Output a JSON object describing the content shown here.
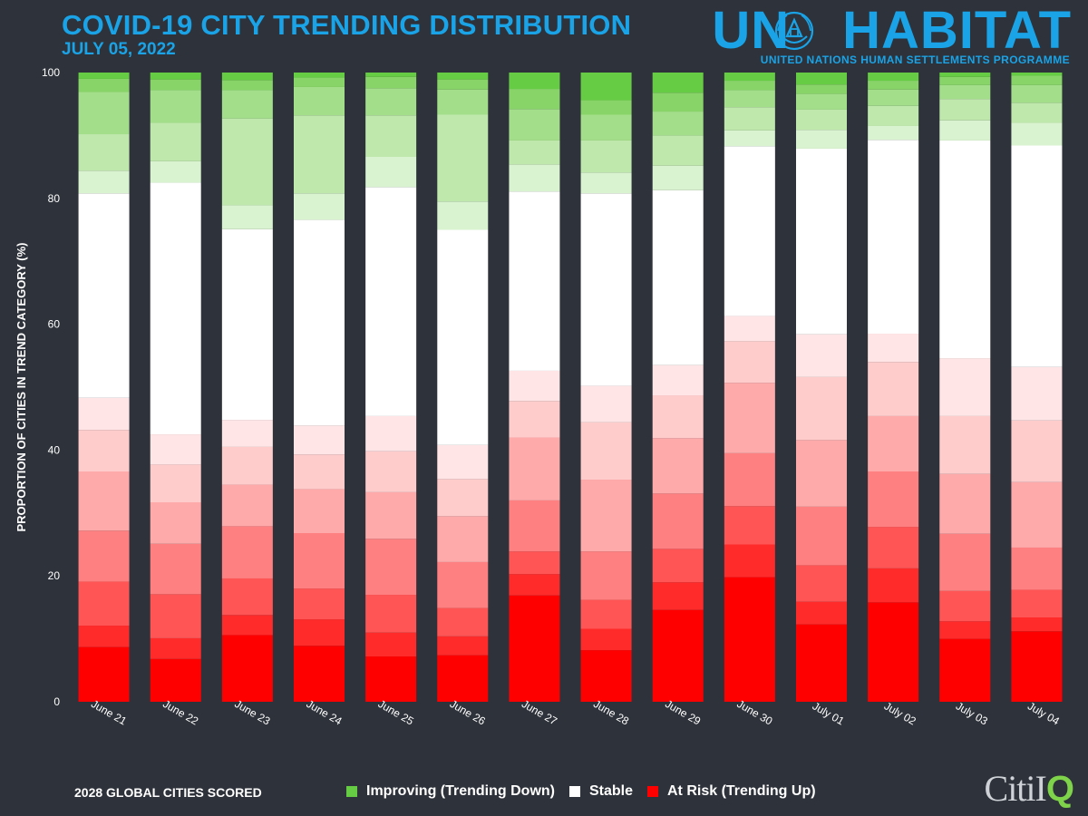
{
  "header": {
    "title": "COVID-19 CITY TRENDING DISTRIBUTION",
    "subtitle": "JULY 05, 2022"
  },
  "brand": {
    "name_left": "UN",
    "name_right": "HABITAT",
    "subtitle": "UNITED NATIONS HUMAN SETTLEMENTS PROGRAMME",
    "emblem_icon": "un-habitat-emblem-icon"
  },
  "footer": {
    "cities_scored": "2028 GLOBAL CITIES SCORED",
    "logo_text": "Citi",
    "logo_q": "Q",
    "logo_i": "I"
  },
  "colors": {
    "accent": "#1aa3e6",
    "background": "#2e323a",
    "improving": "#66cc44",
    "stable": "#ffffff",
    "at_risk": "#ff0000"
  },
  "legend": [
    {
      "label": "Improving (Trending Down)",
      "color": "#66cc44"
    },
    {
      "label": "Stable",
      "color": "#ffffff"
    },
    {
      "label": "At Risk (Trending Up)",
      "color": "#ff0000"
    }
  ],
  "chart_data": {
    "type": "bar",
    "stacked": true,
    "title": "",
    "xlabel": "",
    "ylabel": "PROPORTION OF CITIES IN TREND CATEGORY (%)",
    "ylim": [
      0,
      100
    ],
    "yticks": [
      0,
      20,
      40,
      60,
      80,
      100
    ],
    "grid": false,
    "legend_position": "bottom",
    "categories": [
      "June 21",
      "June 22",
      "June 23",
      "June 24",
      "June 25",
      "June 26",
      "June 27",
      "June 28",
      "June 29",
      "June 30",
      "July 01",
      "July 02",
      "July 03",
      "July 04"
    ],
    "series": [
      {
        "group": "At Risk (Trending Up)",
        "level": 1,
        "color": "#ff0000",
        "values": [
          8.7,
          6.8,
          10.6,
          8.9,
          7.2,
          7.4,
          16.9,
          8.2,
          14.6,
          19.8,
          12.3,
          15.8,
          10.0,
          11.2
        ]
      },
      {
        "group": "At Risk (Trending Up)",
        "level": 2,
        "color": "#ff2b2b",
        "values": [
          3.4,
          3.3,
          3.2,
          4.2,
          3.8,
          3.0,
          3.4,
          3.4,
          4.4,
          5.2,
          3.6,
          5.4,
          2.8,
          2.2
        ]
      },
      {
        "group": "At Risk (Trending Up)",
        "level": 3,
        "color": "#ff5555",
        "values": [
          7.0,
          7.0,
          5.8,
          4.9,
          6.0,
          4.5,
          3.6,
          4.6,
          5.3,
          6.1,
          5.8,
          6.6,
          4.8,
          4.4
        ]
      },
      {
        "group": "At Risk (Trending Up)",
        "level": 4,
        "color": "#ff8080",
        "values": [
          8.1,
          8.0,
          8.3,
          8.8,
          8.9,
          7.3,
          8.1,
          7.7,
          8.8,
          8.4,
          9.3,
          8.8,
          9.1,
          6.7
        ]
      },
      {
        "group": "At Risk (Trending Up)",
        "level": 5,
        "color": "#ffaaaa",
        "values": [
          9.4,
          6.6,
          6.6,
          7.0,
          7.4,
          7.3,
          10.0,
          11.4,
          8.8,
          11.2,
          10.6,
          8.8,
          9.5,
          10.4
        ]
      },
      {
        "group": "At Risk (Trending Up)",
        "level": 6,
        "color": "#ffcccc",
        "values": [
          6.6,
          6.0,
          6.0,
          5.5,
          6.5,
          5.9,
          5.8,
          9.1,
          6.8,
          6.6,
          10.0,
          8.6,
          9.2,
          9.8
        ]
      },
      {
        "group": "At Risk (Trending Up)",
        "level": 7,
        "color": "#ffe5e5",
        "values": [
          5.1,
          4.8,
          4.3,
          4.6,
          5.6,
          5.4,
          4.8,
          5.8,
          4.8,
          4.0,
          6.8,
          4.5,
          9.2,
          8.5
        ]
      },
      {
        "group": "Stable",
        "level": 0,
        "color": "#ffffff",
        "values": [
          32.5,
          40.0,
          30.3,
          32.7,
          36.4,
          34.2,
          28.5,
          30.6,
          27.8,
          27.0,
          29.5,
          30.8,
          34.6,
          35.2
        ]
      },
      {
        "group": "Improving (Trending Down)",
        "level": 7,
        "color": "#d9f2cf",
        "values": [
          3.6,
          3.4,
          3.8,
          4.2,
          4.8,
          4.5,
          4.3,
          3.3,
          3.9,
          2.5,
          3.0,
          2.2,
          3.2,
          3.6
        ]
      },
      {
        "group": "Improving (Trending Down)",
        "level": 6,
        "color": "#bfe8ad",
        "values": [
          5.8,
          6.1,
          13.8,
          12.4,
          6.6,
          13.8,
          3.8,
          5.1,
          4.8,
          3.7,
          3.2,
          3.2,
          3.4,
          3.2
        ]
      },
      {
        "group": "Improving (Trending Down)",
        "level": 5,
        "color": "#a3de8a",
        "values": [
          6.7,
          5.2,
          4.5,
          4.5,
          4.3,
          4.0,
          5.0,
          4.1,
          3.8,
          2.7,
          2.5,
          2.6,
          2.2,
          2.8
        ]
      },
      {
        "group": "Improving (Trending Down)",
        "level": 4,
        "color": "#88d468",
        "values": [
          2.1,
          1.7,
          1.6,
          1.5,
          1.8,
          1.6,
          3.2,
          2.3,
          3.0,
          1.5,
          1.5,
          1.4,
          1.3,
          1.5
        ]
      },
      {
        "group": "Improving (Trending Down)",
        "level": 3,
        "color": "#66cc44",
        "values": [
          1.0,
          1.1,
          1.2,
          0.8,
          1.3,
          1.1,
          4.2,
          4.4,
          4.5,
          1.3,
          1.9,
          1.3,
          0.7,
          0.6
        ]
      }
    ]
  }
}
